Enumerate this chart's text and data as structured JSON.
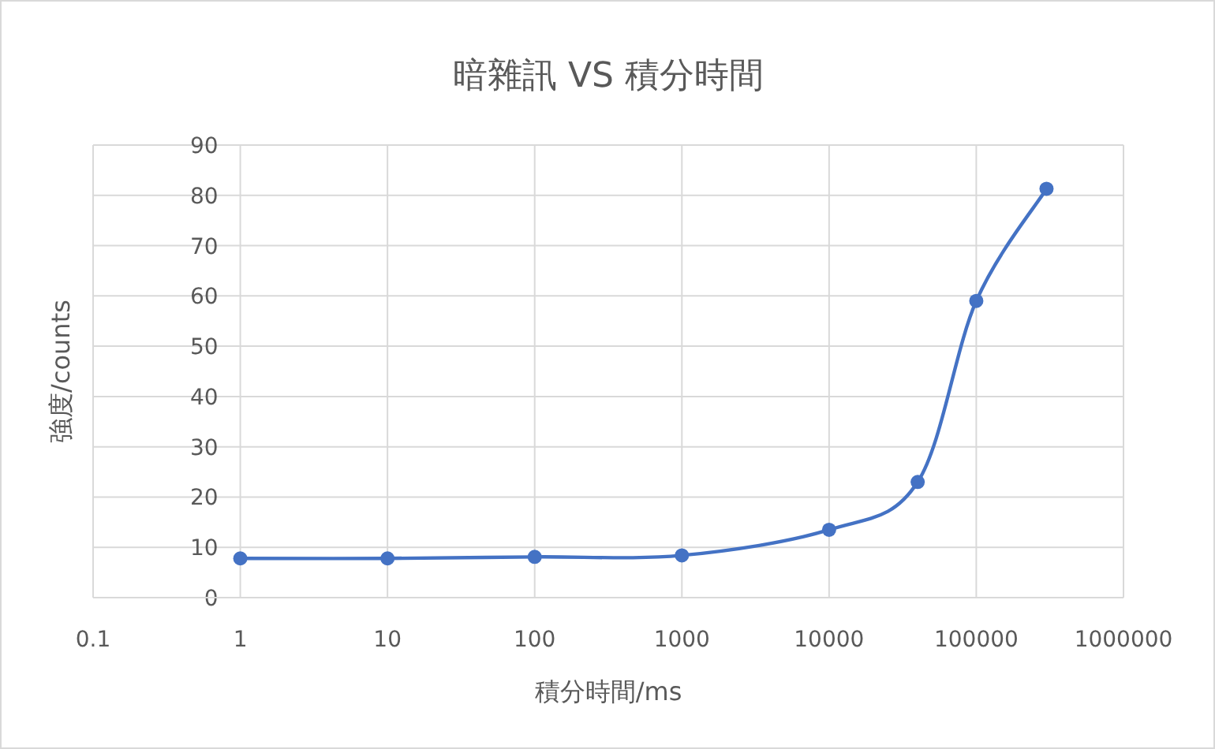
{
  "chart_data": {
    "type": "line",
    "title": "暗雜訊 VS 積分時間",
    "xlabel": "積分時間/ms",
    "ylabel": "強度/counts",
    "x": [
      1,
      10,
      100,
      1000,
      10000,
      40000,
      100000,
      300000
    ],
    "series": [
      {
        "color": "#4472c4",
        "values": [
          7.8,
          7.8,
          8.1,
          8.4,
          13.5,
          23,
          59,
          81.3
        ]
      }
    ],
    "log": "x",
    "xlim": [
      0.1,
      1000000
    ],
    "xticks": [
      0.1,
      1,
      10,
      100,
      1000,
      10000,
      100000,
      1000000
    ],
    "ylim": [
      0,
      90
    ],
    "yticks": [
      0,
      10,
      20,
      30,
      40,
      50,
      60,
      70,
      80,
      90
    ],
    "grid": true,
    "marker": "circle",
    "line_style": "solid"
  }
}
